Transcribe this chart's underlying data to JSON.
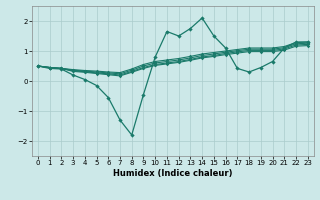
{
  "xlabel": "Humidex (Indice chaleur)",
  "bg_color": "#cce8e8",
  "grid_color": "#aacccc",
  "line_color": "#1a7a6a",
  "xlim": [
    -0.5,
    23.5
  ],
  "ylim": [
    -2.5,
    2.5
  ],
  "xticks": [
    0,
    1,
    2,
    3,
    4,
    5,
    6,
    7,
    8,
    9,
    10,
    11,
    12,
    13,
    14,
    15,
    16,
    17,
    18,
    19,
    20,
    21,
    22,
    23
  ],
  "yticks": [
    -2,
    -1,
    0,
    1,
    2
  ],
  "x": [
    0,
    1,
    2,
    3,
    4,
    5,
    6,
    7,
    8,
    9,
    10,
    11,
    12,
    13,
    14,
    15,
    16,
    17,
    18,
    19,
    20,
    21,
    22,
    23
  ],
  "smooth1": [
    0.5,
    0.45,
    0.42,
    0.38,
    0.35,
    0.33,
    0.3,
    0.28,
    0.4,
    0.55,
    0.65,
    0.7,
    0.75,
    0.82,
    0.9,
    0.95,
    1.0,
    1.05,
    1.1,
    1.1,
    1.1,
    1.15,
    1.28,
    1.3
  ],
  "smooth2": [
    0.5,
    0.45,
    0.42,
    0.36,
    0.33,
    0.3,
    0.27,
    0.24,
    0.36,
    0.5,
    0.6,
    0.65,
    0.7,
    0.77,
    0.85,
    0.9,
    0.96,
    1.01,
    1.06,
    1.06,
    1.06,
    1.11,
    1.24,
    1.26
  ],
  "smooth3": [
    0.5,
    0.45,
    0.42,
    0.34,
    0.31,
    0.27,
    0.24,
    0.2,
    0.32,
    0.45,
    0.55,
    0.6,
    0.65,
    0.72,
    0.8,
    0.85,
    0.92,
    0.97,
    1.02,
    1.02,
    1.02,
    1.07,
    1.2,
    1.22
  ],
  "smooth4": [
    0.5,
    0.45,
    0.42,
    0.32,
    0.29,
    0.25,
    0.21,
    0.17,
    0.29,
    0.42,
    0.52,
    0.57,
    0.62,
    0.69,
    0.77,
    0.82,
    0.88,
    0.93,
    0.98,
    0.98,
    0.98,
    1.03,
    1.16,
    1.18
  ],
  "volatile": [
    0.5,
    0.42,
    0.4,
    0.2,
    0.05,
    -0.15,
    -0.55,
    -1.3,
    -1.8,
    -0.45,
    0.8,
    1.65,
    1.5,
    1.75,
    2.1,
    1.5,
    1.1,
    0.42,
    0.3,
    0.45,
    0.65,
    1.1,
    1.3,
    1.3
  ]
}
